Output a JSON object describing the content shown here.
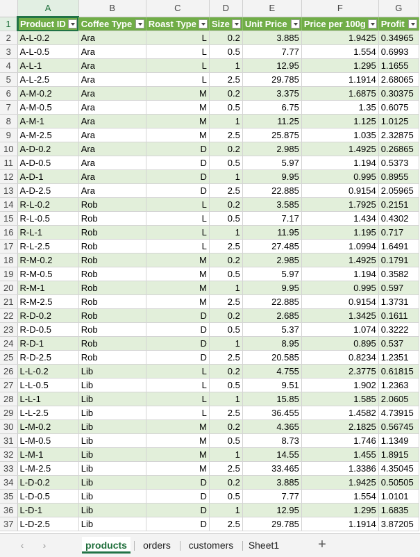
{
  "sheet": {
    "column_letters": [
      "A",
      "B",
      "C",
      "D",
      "E",
      "F",
      "G"
    ],
    "header_row_number": "1",
    "headers": [
      "Product ID",
      "Coffee Type",
      "Roast Type",
      "Size",
      "Unit Price",
      "Price per 100g",
      "Profit"
    ],
    "rows": [
      [
        "2",
        "A-L-0.2",
        "Ara",
        "L",
        "0.2",
        "3.885",
        "1.9425",
        "0.34965"
      ],
      [
        "3",
        "A-L-0.5",
        "Ara",
        "L",
        "0.5",
        "7.77",
        "1.554",
        "0.6993"
      ],
      [
        "4",
        "A-L-1",
        "Ara",
        "L",
        "1",
        "12.95",
        "1.295",
        "1.1655"
      ],
      [
        "5",
        "A-L-2.5",
        "Ara",
        "L",
        "2.5",
        "29.785",
        "1.1914",
        "2.68065"
      ],
      [
        "6",
        "A-M-0.2",
        "Ara",
        "M",
        "0.2",
        "3.375",
        "1.6875",
        "0.30375"
      ],
      [
        "7",
        "A-M-0.5",
        "Ara",
        "M",
        "0.5",
        "6.75",
        "1.35",
        "0.6075"
      ],
      [
        "8",
        "A-M-1",
        "Ara",
        "M",
        "1",
        "11.25",
        "1.125",
        "1.0125"
      ],
      [
        "9",
        "A-M-2.5",
        "Ara",
        "M",
        "2.5",
        "25.875",
        "1.035",
        "2.32875"
      ],
      [
        "10",
        "A-D-0.2",
        "Ara",
        "D",
        "0.2",
        "2.985",
        "1.4925",
        "0.26865"
      ],
      [
        "11",
        "A-D-0.5",
        "Ara",
        "D",
        "0.5",
        "5.97",
        "1.194",
        "0.5373"
      ],
      [
        "12",
        "A-D-1",
        "Ara",
        "D",
        "1",
        "9.95",
        "0.995",
        "0.8955"
      ],
      [
        "13",
        "A-D-2.5",
        "Ara",
        "D",
        "2.5",
        "22.885",
        "0.9154",
        "2.05965"
      ],
      [
        "14",
        "R-L-0.2",
        "Rob",
        "L",
        "0.2",
        "3.585",
        "1.7925",
        "0.2151"
      ],
      [
        "15",
        "R-L-0.5",
        "Rob",
        "L",
        "0.5",
        "7.17",
        "1.434",
        "0.4302"
      ],
      [
        "16",
        "R-L-1",
        "Rob",
        "L",
        "1",
        "11.95",
        "1.195",
        "0.717"
      ],
      [
        "17",
        "R-L-2.5",
        "Rob",
        "L",
        "2.5",
        "27.485",
        "1.0994",
        "1.6491"
      ],
      [
        "18",
        "R-M-0.2",
        "Rob",
        "M",
        "0.2",
        "2.985",
        "1.4925",
        "0.1791"
      ],
      [
        "19",
        "R-M-0.5",
        "Rob",
        "M",
        "0.5",
        "5.97",
        "1.194",
        "0.3582"
      ],
      [
        "20",
        "R-M-1",
        "Rob",
        "M",
        "1",
        "9.95",
        "0.995",
        "0.597"
      ],
      [
        "21",
        "R-M-2.5",
        "Rob",
        "M",
        "2.5",
        "22.885",
        "0.9154",
        "1.3731"
      ],
      [
        "22",
        "R-D-0.2",
        "Rob",
        "D",
        "0.2",
        "2.685",
        "1.3425",
        "0.1611"
      ],
      [
        "23",
        "R-D-0.5",
        "Rob",
        "D",
        "0.5",
        "5.37",
        "1.074",
        "0.3222"
      ],
      [
        "24",
        "R-D-1",
        "Rob",
        "D",
        "1",
        "8.95",
        "0.895",
        "0.537"
      ],
      [
        "25",
        "R-D-2.5",
        "Rob",
        "D",
        "2.5",
        "20.585",
        "0.8234",
        "1.2351"
      ],
      [
        "26",
        "L-L-0.2",
        "Lib",
        "L",
        "0.2",
        "4.755",
        "2.3775",
        "0.61815"
      ],
      [
        "27",
        "L-L-0.5",
        "Lib",
        "L",
        "0.5",
        "9.51",
        "1.902",
        "1.2363"
      ],
      [
        "28",
        "L-L-1",
        "Lib",
        "L",
        "1",
        "15.85",
        "1.585",
        "2.0605"
      ],
      [
        "29",
        "L-L-2.5",
        "Lib",
        "L",
        "2.5",
        "36.455",
        "1.4582",
        "4.73915"
      ],
      [
        "30",
        "L-M-0.2",
        "Lib",
        "M",
        "0.2",
        "4.365",
        "2.1825",
        "0.56745"
      ],
      [
        "31",
        "L-M-0.5",
        "Lib",
        "M",
        "0.5",
        "8.73",
        "1.746",
        "1.1349"
      ],
      [
        "32",
        "L-M-1",
        "Lib",
        "M",
        "1",
        "14.55",
        "1.455",
        "1.8915"
      ],
      [
        "33",
        "L-M-2.5",
        "Lib",
        "M",
        "2.5",
        "33.465",
        "1.3386",
        "4.35045"
      ],
      [
        "34",
        "L-D-0.2",
        "Lib",
        "D",
        "0.2",
        "3.885",
        "1.9425",
        "0.50505"
      ],
      [
        "35",
        "L-D-0.5",
        "Lib",
        "D",
        "0.5",
        "7.77",
        "1.554",
        "1.0101"
      ],
      [
        "36",
        "L-D-1",
        "Lib",
        "D",
        "1",
        "12.95",
        "1.295",
        "1.6835"
      ],
      [
        "37",
        "L-D-2.5",
        "Lib",
        "D",
        "2.5",
        "29.785",
        "1.1914",
        "3.87205"
      ]
    ]
  },
  "tabs": {
    "prev_icon": "chevron-left-icon",
    "next_icon": "chevron-right-icon",
    "prev_glyph": "‹",
    "next_glyph": "›",
    "items": [
      "products",
      "orders",
      "customers",
      "Sheet1"
    ],
    "active": "products",
    "add_glyph": "+"
  },
  "colors": {
    "header_fill": "#70ad47",
    "band_fill": "#e2efda",
    "accent": "#217346"
  }
}
